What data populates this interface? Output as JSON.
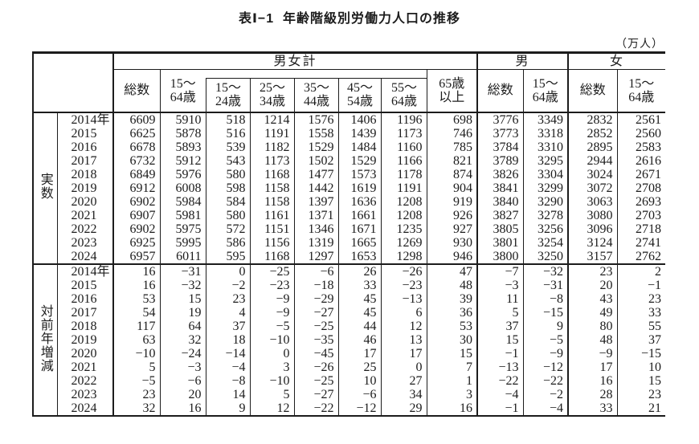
{
  "title": "表Ⅰ−1  年齢階級別労働力人口の推移",
  "unit_label": "（万人）",
  "header": {
    "group_total": "男女計",
    "group_male": "男",
    "group_female": "女",
    "col_total_mf": "総数",
    "col_1564_mf": "15〜\n64歳",
    "sub_ages": [
      "15〜\n24歳",
      "25〜\n34歳",
      "35〜\n44歳",
      "45〜\n54歳",
      "55〜\n64歳"
    ],
    "col_65over": "65歳\n以上",
    "col_total_m": "総数",
    "col_1564_m": "15〜\n64歳",
    "col_total_f": "総数",
    "col_1564_f": "15〜\n64歳"
  },
  "blocks": [
    {
      "label": "実数",
      "rows": [
        {
          "year": "2014年",
          "values": [
            "6609",
            "5910",
            "518",
            "1214",
            "1576",
            "1406",
            "1196",
            "698",
            "3776",
            "3349",
            "2832",
            "2561"
          ]
        },
        {
          "year": "2015",
          "values": [
            "6625",
            "5878",
            "516",
            "1191",
            "1558",
            "1439",
            "1173",
            "746",
            "3773",
            "3318",
            "2852",
            "2560"
          ]
        },
        {
          "year": "2016",
          "values": [
            "6678",
            "5893",
            "539",
            "1182",
            "1529",
            "1484",
            "1160",
            "785",
            "3784",
            "3310",
            "2895",
            "2583"
          ]
        },
        {
          "year": "2017",
          "values": [
            "6732",
            "5912",
            "543",
            "1173",
            "1502",
            "1529",
            "1166",
            "821",
            "3789",
            "3295",
            "2944",
            "2616"
          ]
        },
        {
          "year": "2018",
          "values": [
            "6849",
            "5976",
            "580",
            "1168",
            "1477",
            "1573",
            "1178",
            "874",
            "3826",
            "3304",
            "3024",
            "2671"
          ]
        },
        {
          "year": "2019",
          "values": [
            "6912",
            "6008",
            "598",
            "1158",
            "1442",
            "1619",
            "1191",
            "904",
            "3841",
            "3299",
            "3072",
            "2708"
          ]
        },
        {
          "year": "2020",
          "values": [
            "6902",
            "5984",
            "584",
            "1158",
            "1397",
            "1636",
            "1208",
            "919",
            "3840",
            "3290",
            "3063",
            "2693"
          ]
        },
        {
          "year": "2021",
          "values": [
            "6907",
            "5981",
            "580",
            "1161",
            "1371",
            "1661",
            "1208",
            "926",
            "3827",
            "3278",
            "3080",
            "2703"
          ]
        },
        {
          "year": "2022",
          "values": [
            "6902",
            "5975",
            "572",
            "1151",
            "1346",
            "1671",
            "1235",
            "927",
            "3805",
            "3256",
            "3096",
            "2718"
          ]
        },
        {
          "year": "2023",
          "values": [
            "6925",
            "5995",
            "586",
            "1156",
            "1319",
            "1665",
            "1269",
            "930",
            "3801",
            "3254",
            "3124",
            "2741"
          ]
        },
        {
          "year": "2024",
          "values": [
            "6957",
            "6011",
            "595",
            "1168",
            "1297",
            "1653",
            "1298",
            "946",
            "3800",
            "3250",
            "3157",
            "2762"
          ]
        }
      ]
    },
    {
      "label": "対前年増減",
      "rows": [
        {
          "year": "2014年",
          "values": [
            "16",
            "−31",
            "0",
            "−25",
            "−6",
            "26",
            "−26",
            "47",
            "−7",
            "−32",
            "23",
            "2"
          ]
        },
        {
          "year": "2015",
          "values": [
            "16",
            "−32",
            "−2",
            "−23",
            "−18",
            "33",
            "−23",
            "48",
            "−3",
            "−31",
            "20",
            "−1"
          ]
        },
        {
          "year": "2016",
          "values": [
            "53",
            "15",
            "23",
            "−9",
            "−29",
            "45",
            "−13",
            "39",
            "11",
            "−8",
            "43",
            "23"
          ]
        },
        {
          "year": "2017",
          "values": [
            "54",
            "19",
            "4",
            "−9",
            "−27",
            "45",
            "6",
            "36",
            "5",
            "−15",
            "49",
            "33"
          ]
        },
        {
          "year": "2018",
          "values": [
            "117",
            "64",
            "37",
            "−5",
            "−25",
            "44",
            "12",
            "53",
            "37",
            "9",
            "80",
            "55"
          ]
        },
        {
          "year": "2019",
          "values": [
            "63",
            "32",
            "18",
            "−10",
            "−35",
            "46",
            "13",
            "30",
            "15",
            "−5",
            "48",
            "37"
          ]
        },
        {
          "year": "2020",
          "values": [
            "−10",
            "−24",
            "−14",
            "0",
            "−45",
            "17",
            "17",
            "15",
            "−1",
            "−9",
            "−9",
            "−15"
          ]
        },
        {
          "year": "2021",
          "values": [
            "5",
            "−3",
            "−4",
            "3",
            "−26",
            "25",
            "0",
            "7",
            "−13",
            "−12",
            "17",
            "10"
          ]
        },
        {
          "year": "2022",
          "values": [
            "−5",
            "−6",
            "−8",
            "−10",
            "−25",
            "10",
            "27",
            "1",
            "−22",
            "−22",
            "16",
            "15"
          ]
        },
        {
          "year": "2023",
          "values": [
            "23",
            "20",
            "14",
            "5",
            "−27",
            "−6",
            "34",
            "3",
            "−4",
            "−2",
            "28",
            "23"
          ]
        },
        {
          "year": "2024",
          "values": [
            "32",
            "16",
            "9",
            "12",
            "−22",
            "−12",
            "29",
            "16",
            "−1",
            "−4",
            "33",
            "21"
          ]
        }
      ]
    }
  ]
}
